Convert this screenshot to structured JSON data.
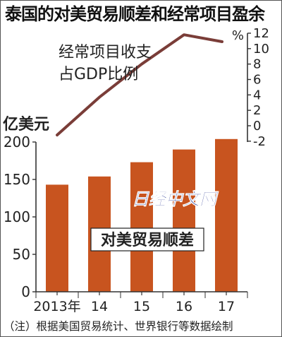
{
  "title": "泰国的对美贸易顺差和经常项目盈余",
  "note": "（注）根据美国贸易统计、世界银行等数据绘制",
  "watermark": "日经中文网",
  "colors": {
    "bar": "#c8541f",
    "line": "#7a3d38",
    "axis": "#333333",
    "watermark": "#1c2b8c"
  },
  "chart_data": {
    "type": "bar+line",
    "categories": [
      "2013年",
      "14",
      "15",
      "16",
      "17"
    ],
    "bar_series": {
      "name": "对美贸易顺差",
      "axis": "left",
      "unit": "亿美元",
      "values": [
        143,
        154,
        173,
        190,
        204
      ],
      "ylim": [
        0,
        200
      ],
      "ticks": [
        0,
        50,
        100,
        150,
        200
      ]
    },
    "line_series": {
      "name": "经常项目收支占GDP比例",
      "name_lines": [
        "经常项目收支",
        "占GDP比例"
      ],
      "axis": "right",
      "unit": "%",
      "x": [
        2013,
        2014,
        2015,
        2016,
        2016.9
      ],
      "values": [
        -1.2,
        3.7,
        8.0,
        11.8,
        10.9
      ],
      "ylim": [
        -2,
        12
      ],
      "ticks": [
        -2,
        0,
        2,
        4,
        6,
        8,
        10,
        12
      ]
    }
  }
}
